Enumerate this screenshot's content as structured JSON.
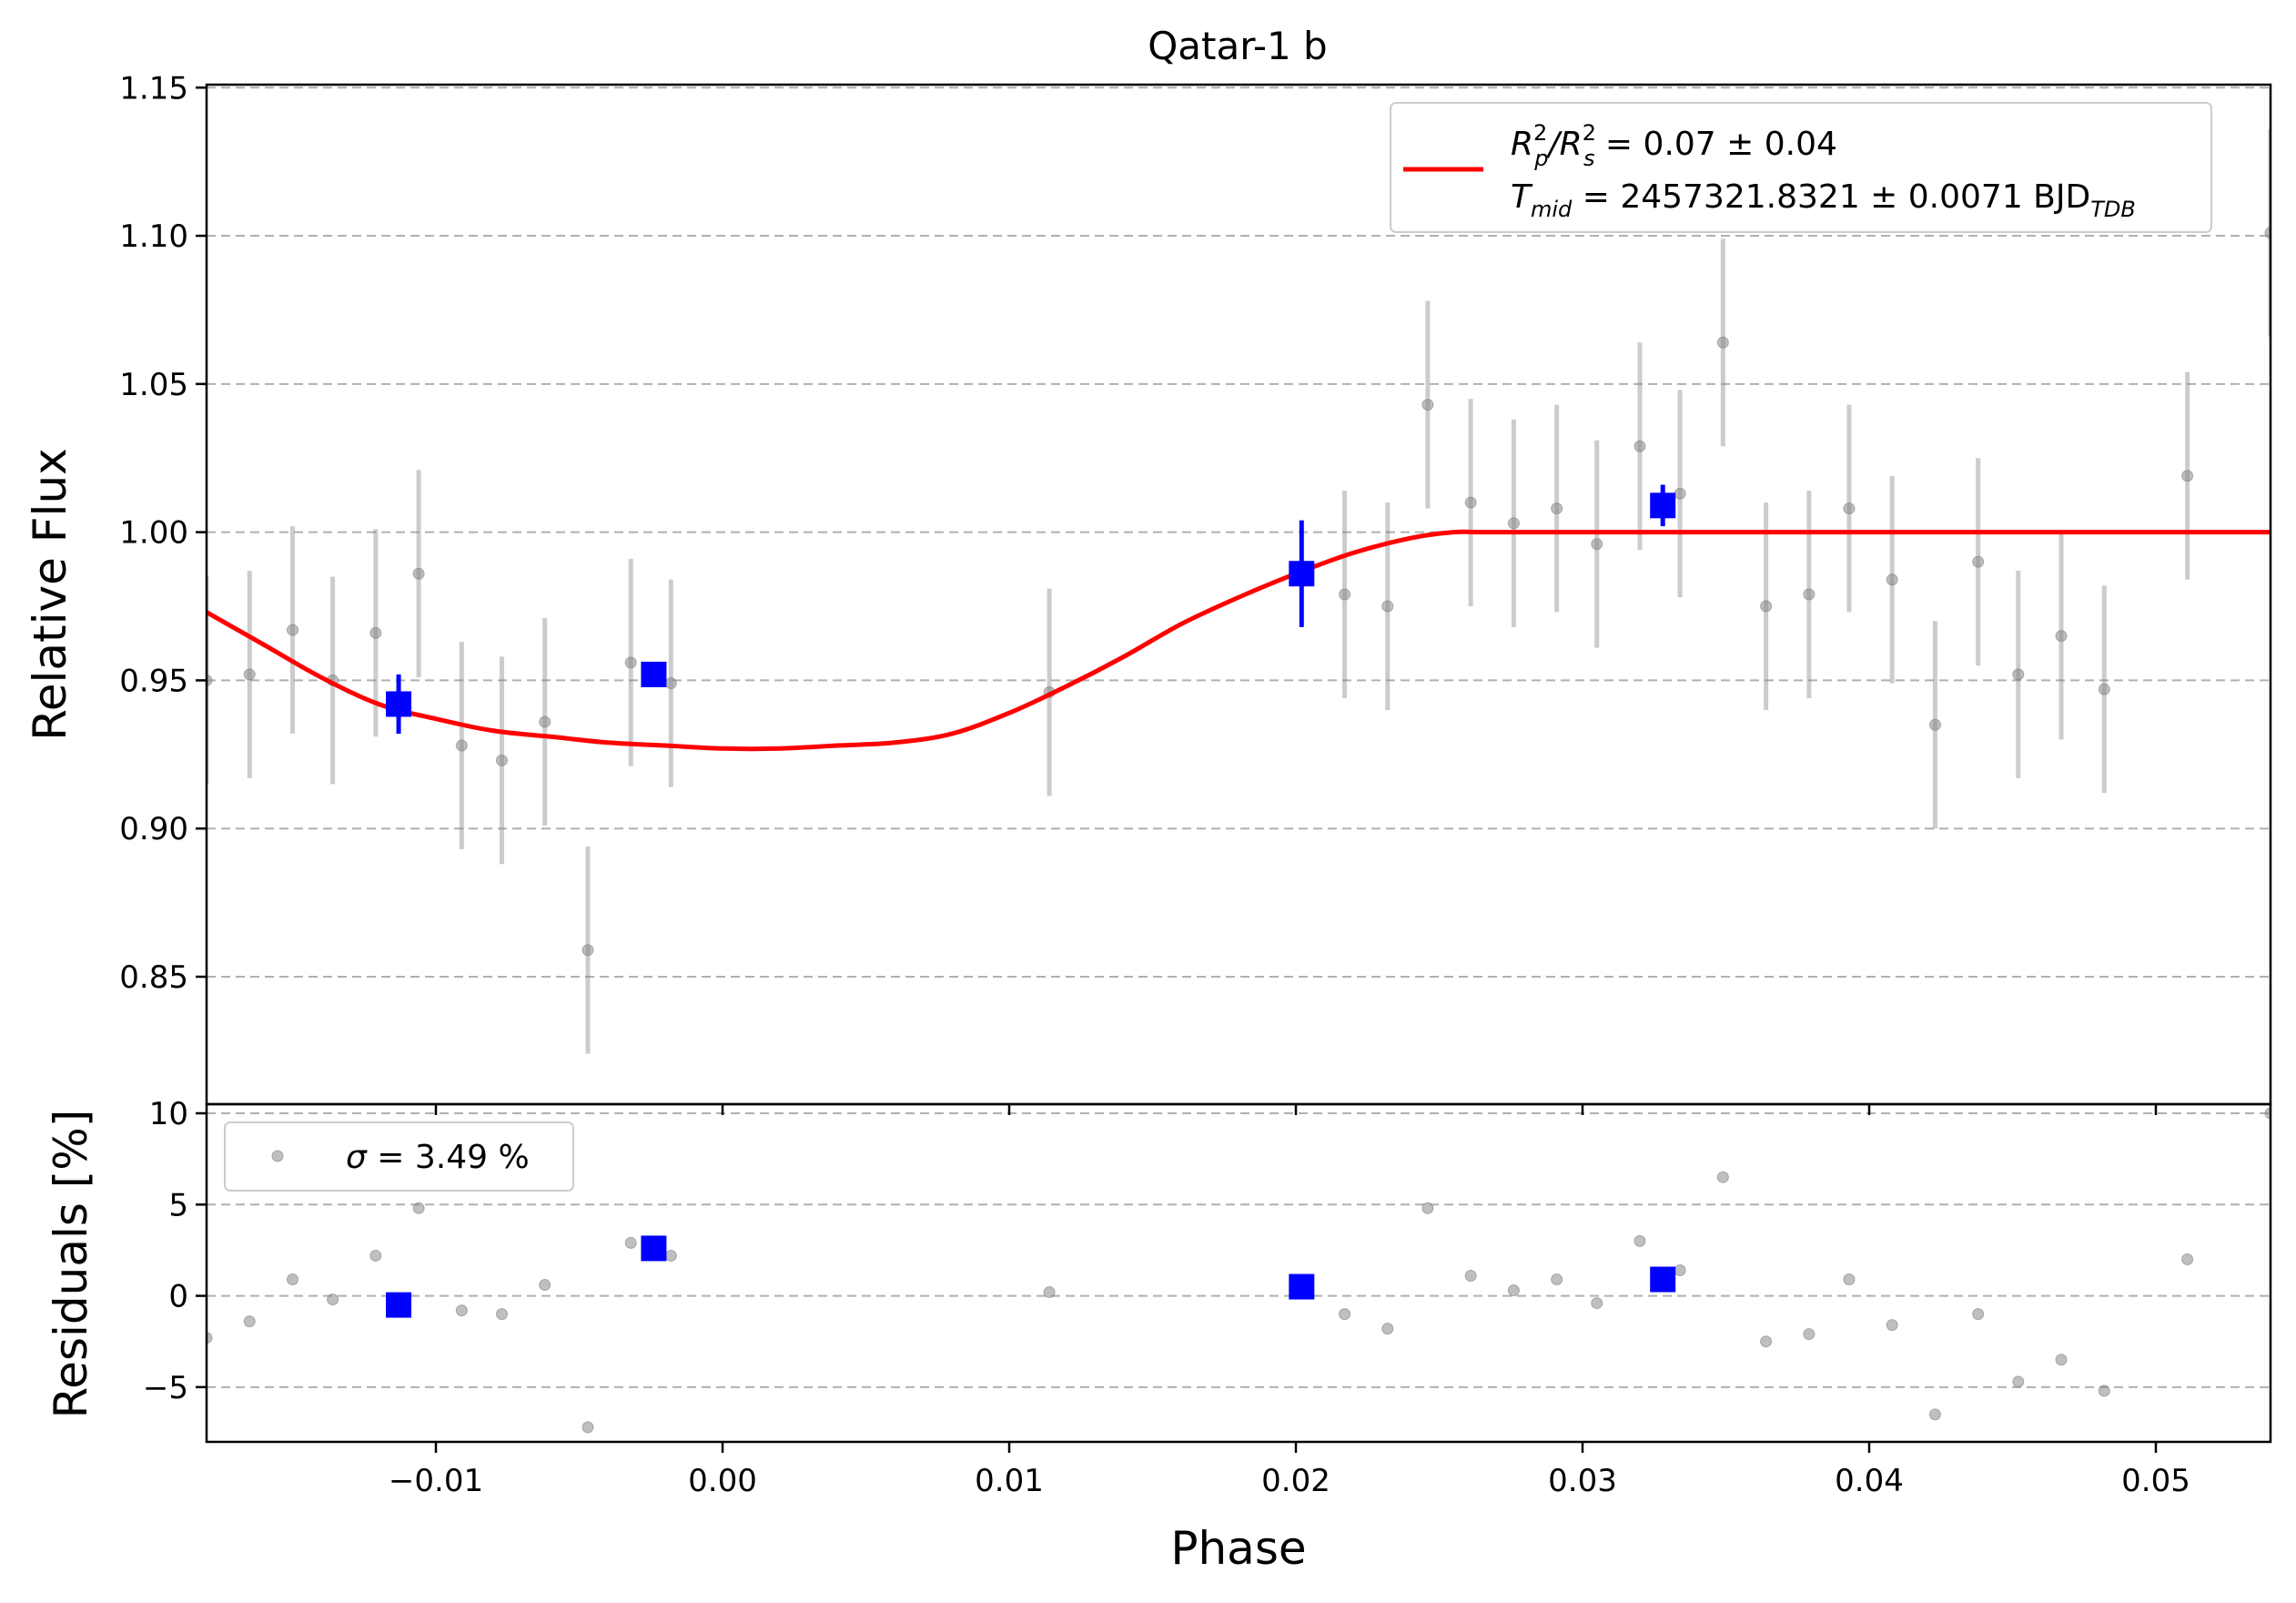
{
  "chart_data": [
    {
      "type": "scatter",
      "panel": "flux",
      "title": "Qatar-1 b",
      "xlabel": "",
      "ylabel": "Relative Flux",
      "xlim": [
        -0.018,
        0.054
      ],
      "ylim": [
        0.807,
        1.151
      ],
      "grid": "horizontal-dashed",
      "xticks": [
        -0.01,
        0.0,
        0.01,
        0.02,
        0.03,
        0.04,
        0.05
      ],
      "xtick_labels": [
        "−0.01",
        "0.00",
        "0.01",
        "0.02",
        "0.03",
        "0.04",
        "0.05"
      ],
      "yticks": [
        0.85,
        0.9,
        0.95,
        1.0,
        1.05,
        1.1,
        1.15
      ],
      "ytick_labels": [
        "0.85",
        "0.90",
        "0.95",
        "1.00",
        "1.05",
        "1.10",
        "1.15"
      ],
      "legend": {
        "placement": "top-right",
        "entries": [
          {
            "line1_base": "R",
            "line1_sub1": "p",
            "line1_sup1": "2",
            "line1_mid": "/R",
            "line1_sub2": "s",
            "line1_sup2": "2",
            "line1_rest": " = 0.07 ± 0.04",
            "line2_base": "T",
            "line2_sub": "mid",
            "line2_rest": " = 2457321.8321 ± 0.0071 BJD",
            "line2_sub2": "TDB"
          }
        ]
      },
      "series": [
        {
          "kind": "data",
          "color": "#808080",
          "x": [
            -0.018,
            -0.0165,
            -0.015,
            -0.0136,
            -0.0121,
            -0.0106,
            -0.0091,
            -0.0077,
            -0.0062,
            -0.0047,
            -0.0032,
            -0.0018,
            0.0114,
            0.0217,
            0.0232,
            0.0246,
            0.0261,
            0.0276,
            0.0291,
            0.0305,
            0.032,
            0.0334,
            0.0349,
            0.0364,
            0.0379,
            0.0393,
            0.0408,
            0.0423,
            0.0438,
            0.0452,
            0.0467,
            0.0482,
            0.0511,
            0.054
          ],
          "y": [
            0.95,
            0.952,
            0.967,
            0.95,
            0.966,
            0.986,
            0.928,
            0.923,
            0.936,
            0.859,
            0.956,
            0.949,
            0.946,
            0.979,
            0.975,
            1.043,
            1.01,
            1.003,
            1.008,
            0.996,
            1.029,
            1.013,
            1.064,
            0.975,
            0.979,
            1.008,
            0.984,
            0.935,
            0.99,
            0.952,
            0.965,
            0.947,
            1.019,
            1.101
          ],
          "yerr": [
            0.035,
            0.035,
            0.035,
            0.035,
            0.035,
            0.035,
            0.035,
            0.035,
            0.035,
            0.035,
            0.035,
            0.035,
            0.035,
            0.035,
            0.035,
            0.035,
            0.035,
            0.035,
            0.035,
            0.035,
            0.035,
            0.035,
            0.035,
            0.035,
            0.035,
            0.035,
            0.035,
            0.035,
            0.035,
            0.035,
            0.035,
            0.035,
            0.035,
            0.035
          ]
        },
        {
          "kind": "binned",
          "color": "#0000ff",
          "x": [
            -0.0113,
            -0.0024,
            0.0202,
            0.0328
          ],
          "y": [
            0.942,
            0.952,
            0.986,
            1.009
          ],
          "yerr": [
            0.01,
            0.002,
            0.018,
            0.007
          ]
        },
        {
          "kind": "model",
          "color": "#ff0000",
          "x": [
            -0.018,
            -0.016,
            -0.014,
            -0.012,
            -0.01,
            -0.008,
            -0.006,
            -0.004,
            -0.002,
            0.0,
            0.002,
            0.004,
            0.006,
            0.008,
            0.01,
            0.012,
            0.014,
            0.016,
            0.018,
            0.02,
            0.022,
            0.024,
            0.0255,
            0.0265,
            0.03,
            0.035,
            0.04,
            0.045,
            0.05,
            0.054
          ],
          "y": [
            0.973,
            0.962,
            0.951,
            0.942,
            0.937,
            0.933,
            0.931,
            0.929,
            0.928,
            0.927,
            0.927,
            0.928,
            0.929,
            0.932,
            0.939,
            0.948,
            0.958,
            0.969,
            0.978,
            0.986,
            0.993,
            0.998,
            1.0,
            1.0,
            1.0,
            1.0,
            1.0,
            1.0,
            1.0,
            1.0
          ]
        }
      ]
    },
    {
      "type": "scatter",
      "panel": "residuals",
      "xlabel": "Phase",
      "ylabel": "Residuals [%]",
      "xlim": [
        -0.018,
        0.054
      ],
      "ylim": [
        -8,
        10.5
      ],
      "grid": "horizontal-dashed",
      "yticks": [
        -5,
        0,
        5,
        10
      ],
      "ytick_labels": [
        "−5",
        "0",
        "5",
        "10"
      ],
      "legend": {
        "placement": "top-left",
        "entries": [
          {
            "symbol": "σ",
            "text": " = 3.49 %"
          }
        ]
      },
      "series": [
        {
          "kind": "data",
          "color": "#808080",
          "x": [
            -0.018,
            -0.0165,
            -0.015,
            -0.0136,
            -0.0121,
            -0.0106,
            -0.0091,
            -0.0077,
            -0.0062,
            -0.0047,
            -0.0032,
            -0.0018,
            0.0114,
            0.0217,
            0.0232,
            0.0246,
            0.0261,
            0.0276,
            0.0291,
            0.0305,
            0.032,
            0.0334,
            0.0349,
            0.0364,
            0.0379,
            0.0393,
            0.0408,
            0.0423,
            0.0438,
            0.0452,
            0.0467,
            0.0482,
            0.0511,
            0.054
          ],
          "y": [
            -2.3,
            -1.4,
            0.9,
            -0.2,
            2.2,
            4.8,
            -0.8,
            -1.0,
            0.6,
            -7.2,
            2.9,
            2.2,
            0.2,
            -1.0,
            -1.8,
            4.8,
            1.1,
            0.3,
            0.9,
            -0.4,
            3.0,
            1.4,
            6.5,
            -2.5,
            -2.1,
            0.9,
            -1.6,
            -6.5,
            -1.0,
            -4.7,
            -3.5,
            -5.2,
            2.0,
            10.0
          ]
        },
        {
          "kind": "binned",
          "color": "#0000ff",
          "x": [
            -0.0113,
            -0.0024,
            0.0202,
            0.0328
          ],
          "y": [
            -0.5,
            2.6,
            0.5,
            0.9
          ]
        }
      ]
    }
  ]
}
